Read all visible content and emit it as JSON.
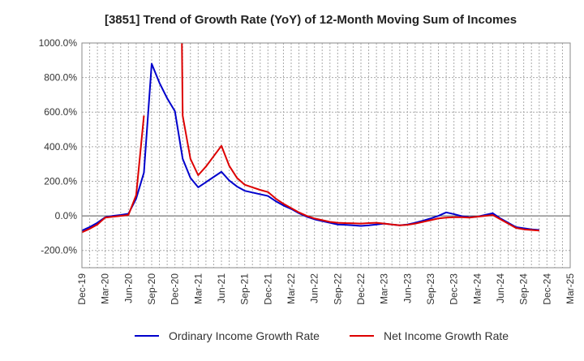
{
  "chart_data": {
    "type": "line",
    "title": "[3851]  Trend of Growth Rate (YoY) of 12-Month Moving Sum of Incomes",
    "xlabel": "",
    "ylabel": "",
    "ylim": [
      -300,
      1000
    ],
    "y_ticks": [
      1000,
      800,
      600,
      400,
      200,
      0,
      -200
    ],
    "y_tick_labels": [
      "1000.0%",
      "800.0%",
      "600.0%",
      "400.0%",
      "200.0%",
      "0.0%",
      "-200.0%"
    ],
    "x_tick_labels": [
      "Dec-19",
      "Mar-20",
      "Jun-20",
      "Sep-20",
      "Dec-20",
      "Mar-21",
      "Jun-21",
      "Sep-21",
      "Dec-21",
      "Mar-22",
      "Jun-22",
      "Sep-22",
      "Dec-22",
      "Mar-23",
      "Jun-23",
      "Sep-23",
      "Dec-23",
      "Mar-24",
      "Jun-24",
      "Sep-24",
      "Dec-24",
      "Mar-25"
    ],
    "grid": true,
    "legend_position": "bottom",
    "series": [
      {
        "name": "Ordinary Income Growth Rate",
        "color": "#0000cc",
        "points": [
          [
            0,
            -85
          ],
          [
            1,
            -65
          ],
          [
            2,
            -40
          ],
          [
            3,
            -8
          ],
          [
            4,
            0
          ],
          [
            5,
            5
          ],
          [
            6,
            12
          ],
          [
            7,
            100
          ],
          [
            8,
            250
          ],
          [
            9,
            880
          ],
          [
            10,
            770
          ],
          [
            11,
            680
          ],
          [
            12,
            605
          ],
          [
            13,
            330
          ],
          [
            14,
            220
          ],
          [
            15,
            165
          ],
          [
            16,
            195
          ],
          [
            17,
            225
          ],
          [
            18,
            255
          ],
          [
            19,
            205
          ],
          [
            20,
            170
          ],
          [
            21,
            145
          ],
          [
            22,
            135
          ],
          [
            23,
            125
          ],
          [
            24,
            115
          ],
          [
            25,
            85
          ],
          [
            26,
            60
          ],
          [
            27,
            40
          ],
          [
            28,
            15
          ],
          [
            29,
            -5
          ],
          [
            30,
            -20
          ],
          [
            31,
            -30
          ],
          [
            32,
            -40
          ],
          [
            33,
            -50
          ],
          [
            34,
            -52
          ],
          [
            35,
            -55
          ],
          [
            36,
            -58
          ],
          [
            37,
            -55
          ],
          [
            38,
            -50
          ],
          [
            39,
            -45
          ],
          [
            40,
            -50
          ],
          [
            41,
            -55
          ],
          [
            42,
            -50
          ],
          [
            43,
            -40
          ],
          [
            44,
            -28
          ],
          [
            45,
            -15
          ],
          [
            46,
            0
          ],
          [
            47,
            20
          ],
          [
            48,
            10
          ],
          [
            49,
            -2
          ],
          [
            50,
            -8
          ],
          [
            51,
            -5
          ],
          [
            52,
            5
          ],
          [
            53,
            15
          ],
          [
            54,
            -15
          ],
          [
            55,
            -40
          ],
          [
            56,
            -65
          ],
          [
            57,
            -72
          ],
          [
            58,
            -78
          ],
          [
            59,
            -82
          ]
        ]
      },
      {
        "name": "Net Income Growth Rate",
        "color": "#dd0000",
        "segments": [
          [
            [
              0,
              -95
            ],
            [
              1,
              -75
            ],
            [
              2,
              -50
            ],
            [
              3,
              -10
            ],
            [
              4,
              -5
            ],
            [
              5,
              0
            ],
            [
              6,
              5
            ],
            [
              7,
              120
            ],
            [
              8,
              580
            ]
          ],
          [
            [
              12.9,
              1000
            ],
            [
              13,
              580
            ],
            [
              14,
              330
            ],
            [
              15,
              235
            ],
            [
              16,
              285
            ],
            [
              17,
              345
            ],
            [
              18,
              405
            ],
            [
              19,
              290
            ],
            [
              20,
              220
            ],
            [
              21,
              180
            ],
            [
              22,
              165
            ],
            [
              23,
              150
            ],
            [
              24,
              138
            ],
            [
              25,
              100
            ],
            [
              26,
              70
            ],
            [
              27,
              45
            ],
            [
              28,
              20
            ],
            [
              29,
              0
            ],
            [
              30,
              -15
            ],
            [
              31,
              -25
            ],
            [
              32,
              -35
            ],
            [
              33,
              -40
            ],
            [
              34,
              -42
            ],
            [
              35,
              -43
            ],
            [
              36,
              -45
            ],
            [
              37,
              -42
            ],
            [
              38,
              -40
            ],
            [
              39,
              -45
            ],
            [
              40,
              -50
            ],
            [
              41,
              -55
            ],
            [
              42,
              -52
            ],
            [
              43,
              -45
            ],
            [
              44,
              -35
            ],
            [
              45,
              -25
            ],
            [
              46,
              -15
            ],
            [
              47,
              -10
            ],
            [
              48,
              -8
            ],
            [
              49,
              -8
            ],
            [
              50,
              -10
            ],
            [
              51,
              -5
            ],
            [
              52,
              0
            ],
            [
              53,
              5
            ],
            [
              54,
              -20
            ],
            [
              55,
              -45
            ],
            [
              56,
              -70
            ],
            [
              57,
              -78
            ],
            [
              58,
              -82
            ],
            [
              59,
              -85
            ]
          ]
        ]
      }
    ]
  }
}
